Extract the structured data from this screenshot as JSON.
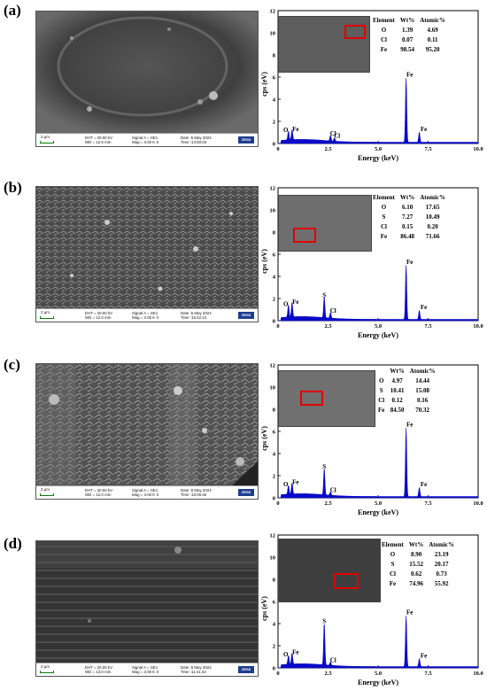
{
  "panels": [
    {
      "label": "(a)",
      "sem": {
        "scale": "2 µm",
        "eht": "EHT = 20.00 kV",
        "wd": "WD = 12.5 mm",
        "signal": "Signal A = SE1",
        "mag": "Mag =   3.00 K X",
        "date": "Date :6 May 2024",
        "time": "Time :14:50:03",
        "brand": "ZEISS"
      },
      "table": {
        "headers": [
          "Element",
          "Wt%",
          "Atomic%"
        ],
        "rows": [
          [
            "O",
            "1.39",
            "4.69"
          ],
          [
            "Cl",
            "0.07",
            "0.11"
          ],
          [
            "Fe",
            "98.54",
            "95.20"
          ]
        ]
      }
    },
    {
      "label": "(b)",
      "sem": {
        "scale": "2 µm",
        "eht": "EHT = 20.00 kV",
        "wd": "WD = 12.0 mm",
        "signal": "Signal A = SE1",
        "mag": "Mag =   3.00 K X",
        "date": "Date :6 May 2024",
        "time": "Time :15:42:13",
        "brand": "ZEISS"
      },
      "table": {
        "headers": [
          "Element",
          "Wt%",
          "Atomic%"
        ],
        "rows": [
          [
            "O",
            "6.10",
            "17.65"
          ],
          [
            "S",
            "7.27",
            "10.49"
          ],
          [
            "Cl",
            "0.15",
            "0.20"
          ],
          [
            "Fe",
            "86.48",
            "71.66"
          ]
        ]
      }
    },
    {
      "label": "(c)",
      "sem": {
        "scale": "2 µm",
        "eht": "EHT = 20.00 kV",
        "wd": "WD = 12.0 mm",
        "signal": "Signal A = SE1",
        "mag": "Mag =   3.00 K X",
        "date": "Date :6 May 2024",
        "time": "Time :16:05:46",
        "brand": "ZEISS"
      },
      "table": {
        "headers": [
          "",
          "Wt%",
          "Atomic%"
        ],
        "rows": [
          [
            "O",
            "4.97",
            "14.44"
          ],
          [
            "S",
            "10.41",
            "15.08"
          ],
          [
            "Cl",
            "0.12",
            "0.16"
          ],
          [
            "Fe",
            "84.50",
            "70.32"
          ]
        ]
      }
    },
    {
      "label": "(d)",
      "sem": {
        "scale": "2 µm",
        "eht": "EHT = 20.00 kV",
        "wd": "WD = 13.0 mm",
        "signal": "Signal A = SE1",
        "mag": "Mag =   3.00 K X",
        "date": "Date :6 May 2024",
        "time": "Time :11:41:34",
        "brand": "ZEISS"
      },
      "table": {
        "headers": [
          "Element",
          "Wt%",
          "Atomic%"
        ],
        "rows": [
          [
            "O",
            "8.90",
            "23.19"
          ],
          [
            "S",
            "15.52",
            "20.17"
          ],
          [
            "Cl",
            "0.62",
            "0.73"
          ],
          [
            "Fe",
            "74.96",
            "55.92"
          ]
        ]
      }
    }
  ],
  "chart_data": [
    {
      "type": "line",
      "xlabel": "Energy (keV)",
      "ylabel": "cps (eV)",
      "xlim": [
        0,
        10
      ],
      "ylim": [
        0,
        12
      ],
      "xticks": [
        "0",
        "2.5",
        "5.0",
        "7.5",
        "10.0"
      ],
      "yticks": [
        "0",
        "2",
        "4",
        "6",
        "8",
        "10",
        "12"
      ],
      "peaks": [
        {
          "label": "O",
          "x": 0.52,
          "y": 0.8
        },
        {
          "label": "Fe",
          "x": 0.7,
          "y": 0.9
        },
        {
          "label": "Cl",
          "x": 2.62,
          "y": 0.5
        },
        {
          "label": "Cl",
          "x": 2.82,
          "y": 0.3
        },
        {
          "label": "Fe",
          "x": 6.4,
          "y": 5.8
        },
        {
          "label": "Fe",
          "x": 7.06,
          "y": 0.9
        }
      ]
    },
    {
      "type": "line",
      "xlabel": "Energy (keV)",
      "ylabel": "cps (eV)",
      "xlim": [
        0,
        10
      ],
      "ylim": [
        0,
        12
      ],
      "xticks": [
        "0",
        "2.5",
        "5.0",
        "7.5",
        "10.0"
      ],
      "yticks": [
        "0",
        "2",
        "4",
        "6",
        "8",
        "10",
        "12"
      ],
      "peaks": [
        {
          "label": "O",
          "x": 0.52,
          "y": 1.1
        },
        {
          "label": "Fe",
          "x": 0.7,
          "y": 1.3
        },
        {
          "label": "S",
          "x": 2.31,
          "y": 1.9
        },
        {
          "label": "Cl",
          "x": 2.62,
          "y": 0.5
        },
        {
          "label": "Fe",
          "x": 6.4,
          "y": 4.9
        },
        {
          "label": "Fe",
          "x": 7.06,
          "y": 0.8
        }
      ]
    },
    {
      "type": "line",
      "xlabel": "Energy (keV)",
      "ylabel": "cps (eV)",
      "xlim": [
        0,
        10
      ],
      "ylim": [
        0,
        12
      ],
      "xticks": [
        "0",
        "2.5",
        "5.0",
        "7.5",
        "10.0"
      ],
      "yticks": [
        "0",
        "2",
        "4",
        "6",
        "8",
        "10",
        "12"
      ],
      "peaks": [
        {
          "label": "O",
          "x": 0.52,
          "y": 0.8
        },
        {
          "label": "Fe",
          "x": 0.7,
          "y": 1.0
        },
        {
          "label": "S",
          "x": 2.31,
          "y": 2.4
        },
        {
          "label": "Cl",
          "x": 2.62,
          "y": 0.3
        },
        {
          "label": "Fe",
          "x": 6.4,
          "y": 6.2
        },
        {
          "label": "Fe",
          "x": 7.06,
          "y": 0.8
        }
      ]
    },
    {
      "type": "line",
      "xlabel": "Energy (keV)",
      "ylabel": "cps (eV)",
      "xlim": [
        0,
        10
      ],
      "ylim": [
        0,
        12
      ],
      "xticks": [
        "0",
        "2.5",
        "5.0",
        "7.5",
        "10.0"
      ],
      "yticks": [
        "0",
        "2",
        "4",
        "6",
        "8",
        "10",
        "12"
      ],
      "peaks": [
        {
          "label": "O",
          "x": 0.52,
          "y": 0.8
        },
        {
          "label": "Fe",
          "x": 0.7,
          "y": 1.0
        },
        {
          "label": "S",
          "x": 2.31,
          "y": 3.8
        },
        {
          "label": "Cl",
          "x": 2.62,
          "y": 0.3
        },
        {
          "label": "Fe",
          "x": 6.4,
          "y": 4.6
        },
        {
          "label": "Fe",
          "x": 7.06,
          "y": 0.7
        }
      ]
    }
  ],
  "colors": {
    "spectrum": "#0a0ac8",
    "marker_box": "#e00000"
  }
}
